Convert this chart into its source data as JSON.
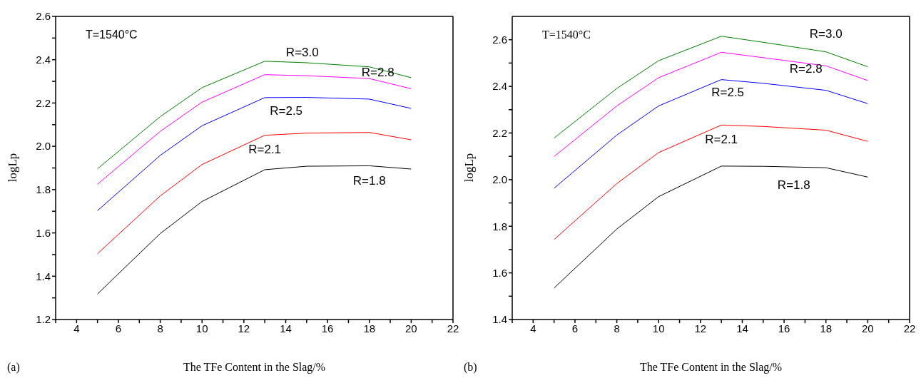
{
  "chart_data": [
    {
      "type": "line",
      "xlabel": "The TFe Content in the Slag/%",
      "ylabel": "logLp",
      "x": [
        5,
        8,
        10,
        13,
        15,
        18,
        20
      ],
      "xlim": [
        3,
        22
      ],
      "xticks": [
        {
          "value": 3,
          "label": null
        },
        4,
        {
          "value": 5,
          "label": null
        },
        6,
        {
          "value": 7,
          "label": null
        },
        8,
        {
          "value": 9,
          "label": null
        },
        10,
        {
          "value": 11,
          "label": null
        },
        12,
        {
          "value": 13,
          "label": null
        },
        14,
        {
          "value": 15,
          "label": null
        },
        16,
        {
          "value": 17,
          "label": null
        },
        18,
        {
          "value": 19,
          "label": null
        },
        20,
        {
          "value": 21,
          "label": null
        },
        22
      ],
      "ylim": [
        1.2,
        2.6
      ],
      "yticks": [
        1.2,
        {
          "value": 1.3,
          "label": null
        },
        1.4,
        {
          "value": 1.5,
          "label": null
        },
        1.6,
        {
          "value": 1.7,
          "label": null
        },
        1.8,
        {
          "value": 1.9,
          "label": null
        },
        {
          "value": 2.0,
          "label": "2.0"
        },
        {
          "value": 2.1,
          "label": null
        },
        2.2,
        {
          "value": 2.3,
          "label": null
        },
        2.4,
        {
          "value": 2.5,
          "label": null
        },
        2.6
      ],
      "grid": false,
      "legend": false,
      "marker": "none",
      "line_style": "solid",
      "series": [
        {
          "name": "R=1.8",
          "color": "#000000",
          "values": [
            1.318,
            1.597,
            1.745,
            1.892,
            1.908,
            1.91,
            1.895
          ]
        },
        {
          "name": "R=2.1",
          "color": "#ff0000",
          "values": [
            1.504,
            1.771,
            1.916,
            2.051,
            2.061,
            2.064,
            2.03
          ]
        },
        {
          "name": "R=2.5",
          "color": "#0000ff",
          "values": [
            1.703,
            1.958,
            2.095,
            2.225,
            2.226,
            2.218,
            2.175
          ]
        },
        {
          "name": "R=2.8",
          "color": "#ff00ff",
          "values": [
            1.825,
            2.069,
            2.204,
            2.331,
            2.326,
            2.313,
            2.266
          ]
        },
        {
          "name": "R=3.0",
          "color": "#008000",
          "values": [
            1.896,
            2.137,
            2.271,
            2.393,
            2.386,
            2.367,
            2.317
          ]
        }
      ],
      "annotations": [
        "T=1540°C",
        "(a)"
      ]
    },
    {
      "type": "line",
      "xlabel": "The TFe Content in the Slag/%",
      "ylabel": "logLp",
      "x": [
        5,
        8,
        10,
        13,
        15,
        18,
        20
      ],
      "xlim": [
        3,
        22
      ],
      "xticks": [
        {
          "value": 3,
          "label": null
        },
        4,
        {
          "value": 5,
          "label": null
        },
        6,
        {
          "value": 7,
          "label": null
        },
        8,
        {
          "value": 9,
          "label": null
        },
        10,
        {
          "value": 11,
          "label": null
        },
        12,
        {
          "value": 13,
          "label": null
        },
        14,
        {
          "value": 15,
          "label": null
        },
        16,
        {
          "value": 17,
          "label": null
        },
        18,
        {
          "value": 19,
          "label": null
        },
        20,
        {
          "value": 21,
          "label": null
        },
        22
      ],
      "ylim": [
        1.4,
        2.7
      ],
      "yticks": [
        1.4,
        {
          "value": 1.5,
          "label": null
        },
        1.6,
        {
          "value": 1.7,
          "label": null
        },
        1.8,
        {
          "value": 1.9,
          "label": null
        },
        {
          "value": 2.0,
          "label": "2.0"
        },
        {
          "value": 2.1,
          "label": null
        },
        2.2,
        {
          "value": 2.3,
          "label": null
        },
        2.4,
        {
          "value": 2.5,
          "label": null
        },
        2.6
      ],
      "grid": false,
      "legend": false,
      "marker": "none",
      "line_style": "solid",
      "series": [
        {
          "name": "R=1.8",
          "color": "#000000",
          "values": [
            1.535,
            1.788,
            1.927,
            2.058,
            2.057,
            2.051,
            2.011
          ]
        },
        {
          "name": "R=2.1",
          "color": "#ff0000",
          "values": [
            1.743,
            1.983,
            2.116,
            2.234,
            2.228,
            2.212,
            2.164
          ]
        },
        {
          "name": "R=2.5",
          "color": "#0000ff",
          "values": [
            1.963,
            2.191,
            2.316,
            2.429,
            2.413,
            2.383,
            2.326
          ]
        },
        {
          "name": "R=2.8",
          "color": "#ff00ff",
          "values": [
            2.099,
            2.316,
            2.437,
            2.546,
            2.523,
            2.488,
            2.425
          ]
        },
        {
          "name": "R=3.0",
          "color": "#008000",
          "values": [
            2.178,
            2.391,
            2.51,
            2.615,
            2.589,
            2.548,
            2.484
          ]
        }
      ],
      "annotations": [
        "T=1540°C",
        "(b)"
      ]
    }
  ]
}
